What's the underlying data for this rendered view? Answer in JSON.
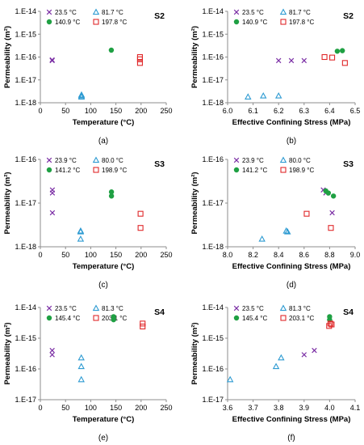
{
  "colors": {
    "purple": "#7B2FA5",
    "blue": "#2E9BD2",
    "green": "#1FA043",
    "red": "#E0282A",
    "axis": "#8C8C8C",
    "text": "#000000"
  },
  "chart_data": [
    {
      "id": "a",
      "panel_label": "(a)",
      "sample": "S2",
      "type": "scatter",
      "xlabel": "Temperature (°C)",
      "ylabel": "Permeability (m²)",
      "x_ticks": [
        "0",
        "50",
        "100",
        "150",
        "200",
        "250"
      ],
      "xlim": [
        0,
        250
      ],
      "y_scale": "log",
      "y_ticks": [
        "1.E-14",
        "1.E-15",
        "1.E-16",
        "1.E-17",
        "1.E-18"
      ],
      "ylim": [
        1e-18,
        1e-14
      ],
      "series": [
        {
          "name": "23.5 °C",
          "marker": "x",
          "x": [
            23.5,
            23.5
          ],
          "y": [
            7e-17,
            7.5e-17
          ]
        },
        {
          "name": "81.7 °C",
          "marker": "triangle",
          "x": [
            81.7,
            81.7,
            81.7
          ],
          "y": [
            1.8e-18,
            2e-18,
            2.2e-18
          ]
        },
        {
          "name": "140.9 °C",
          "marker": "circle",
          "x": [
            140.9
          ],
          "y": [
            2e-16
          ]
        },
        {
          "name": "197.8 °C",
          "marker": "square",
          "x": [
            197.8,
            197.8,
            197.8
          ],
          "y": [
            1e-16,
            8e-17,
            5.5e-17
          ]
        }
      ]
    },
    {
      "id": "b",
      "panel_label": "(b)",
      "sample": "S2",
      "type": "scatter",
      "xlabel": "Effective Confining Stress (MPa)",
      "ylabel": "Permeability (m²)",
      "x_ticks": [
        "6.0",
        "6.1",
        "6.2",
        "6.3",
        "6.4",
        "6.5"
      ],
      "xlim": [
        6.0,
        6.5
      ],
      "y_scale": "log",
      "y_ticks": [
        "1.E-14",
        "1.E-15",
        "1.E-16",
        "1.E-17",
        "1.E-18"
      ],
      "ylim": [
        1e-18,
        1e-14
      ],
      "series": [
        {
          "name": "23.5 °C",
          "marker": "x",
          "x": [
            6.2,
            6.25,
            6.3
          ],
          "y": [
            7e-17,
            7e-17,
            7e-17
          ]
        },
        {
          "name": "81.7 °C",
          "marker": "triangle",
          "x": [
            6.08,
            6.14,
            6.2
          ],
          "y": [
            1.8e-18,
            2e-18,
            2e-18
          ]
        },
        {
          "name": "140.9 °C",
          "marker": "circle",
          "x": [
            6.43,
            6.45
          ],
          "y": [
            1.8e-16,
            1.9e-16
          ]
        },
        {
          "name": "197.8 °C",
          "marker": "square",
          "x": [
            6.38,
            6.41,
            6.46
          ],
          "y": [
            1e-16,
            9.5e-17,
            5.5e-17
          ]
        }
      ]
    },
    {
      "id": "c",
      "panel_label": "(c)",
      "sample": "S3",
      "type": "scatter",
      "xlabel": "Temperature (°C)",
      "ylabel": "Permeability (m²)",
      "x_ticks": [
        "0",
        "50",
        "100",
        "150",
        "200",
        "250"
      ],
      "xlim": [
        0,
        250
      ],
      "y_scale": "log",
      "y_ticks": [
        "1.E-16",
        "1.E-17",
        "1.E-18"
      ],
      "ylim": [
        1e-18,
        1e-16
      ],
      "series": [
        {
          "name": "23.9 °C",
          "marker": "x",
          "x": [
            23.9,
            23.9,
            23.9
          ],
          "y": [
            2e-17,
            1.7e-17,
            6e-18
          ]
        },
        {
          "name": "80.0 °C",
          "marker": "triangle",
          "x": [
            80,
            80,
            80
          ],
          "y": [
            2.3e-18,
            2.2e-18,
            1.5e-18
          ]
        },
        {
          "name": "141.2 °C",
          "marker": "circle",
          "x": [
            141.2,
            141.2
          ],
          "y": [
            1.8e-17,
            1.45e-17
          ]
        },
        {
          "name": "198.9 °C",
          "marker": "square",
          "x": [
            198.9,
            198.9
          ],
          "y": [
            5.7e-18,
            2.7e-18
          ]
        }
      ]
    },
    {
      "id": "d",
      "panel_label": "(d)",
      "sample": "S3",
      "type": "scatter",
      "xlabel": "Effective Confining Stress (MPa)",
      "ylabel": "Permeability (m²)",
      "x_ticks": [
        "8.0",
        "8.2",
        "8.4",
        "8.6",
        "8.8",
        "9.0"
      ],
      "xlim": [
        8.0,
        9.0
      ],
      "y_scale": "log",
      "y_ticks": [
        "1.E-16",
        "1.E-17",
        "1.E-18"
      ],
      "ylim": [
        1e-18,
        1e-16
      ],
      "series": [
        {
          "name": "23.9 °C",
          "marker": "x",
          "x": [
            8.75,
            8.77,
            8.82
          ],
          "y": [
            2e-17,
            1.7e-17,
            6e-18
          ]
        },
        {
          "name": "80.0 °C",
          "marker": "triangle",
          "x": [
            8.27,
            8.46,
            8.47
          ],
          "y": [
            1.5e-18,
            2.3e-18,
            2.2e-18
          ]
        },
        {
          "name": "141.2 °C",
          "marker": "circle",
          "x": [
            8.77,
            8.79,
            8.83
          ],
          "y": [
            1.9e-17,
            1.7e-17,
            1.45e-17
          ]
        },
        {
          "name": "198.9 °C",
          "marker": "square",
          "x": [
            8.62,
            8.81
          ],
          "y": [
            5.7e-18,
            2.7e-18
          ]
        }
      ]
    },
    {
      "id": "e",
      "panel_label": "(e)",
      "sample": "S4",
      "type": "scatter",
      "xlabel": "Temperature (°C)",
      "ylabel": "Permeability (m²)",
      "x_ticks": [
        "0",
        "50",
        "100",
        "150",
        "200",
        "250"
      ],
      "xlim": [
        0,
        250
      ],
      "y_scale": "log",
      "y_ticks": [
        "1.E-14",
        "1.E-15",
        "1.E-16",
        "1.E-17"
      ],
      "ylim": [
        1e-17,
        1e-14
      ],
      "series": [
        {
          "name": "23.5 °C",
          "marker": "x",
          "x": [
            23.5,
            23.5
          ],
          "y": [
            4e-16,
            2.9e-16
          ]
        },
        {
          "name": "81.3 °C",
          "marker": "triangle",
          "x": [
            81.3,
            81.3,
            81.3
          ],
          "y": [
            2.3e-16,
            1.2e-16,
            4.5e-17
          ]
        },
        {
          "name": "145.4 °C",
          "marker": "circle",
          "x": [
            145.4,
            145.4
          ],
          "y": [
            5e-15,
            4e-15
          ]
        },
        {
          "name": "203.1 °C",
          "marker": "square",
          "x": [
            203.1,
            203.1
          ],
          "y": [
            3e-15,
            2.4e-15
          ]
        }
      ]
    },
    {
      "id": "f",
      "panel_label": "(f)",
      "sample": "S4",
      "type": "scatter",
      "xlabel": "Effective Confining Stress (MPa)",
      "ylabel": "Permeability (m²)",
      "x_ticks": [
        "3.6",
        "3.7",
        "3.8",
        "3.9",
        "4.0",
        "4.1"
      ],
      "xlim": [
        3.6,
        4.1
      ],
      "y_scale": "log",
      "y_ticks": [
        "1.E-14",
        "1.E-15",
        "1.E-16",
        "1.E-17"
      ],
      "ylim": [
        1e-17,
        1e-14
      ],
      "series": [
        {
          "name": "23.5 °C",
          "marker": "x",
          "x": [
            3.9,
            3.94
          ],
          "y": [
            2.9e-16,
            4e-16
          ]
        },
        {
          "name": "81.3 °C",
          "marker": "triangle",
          "x": [
            3.61,
            3.79,
            3.81
          ],
          "y": [
            4.5e-17,
            1.2e-16,
            2.3e-16
          ]
        },
        {
          "name": "145.4 °C",
          "marker": "circle",
          "x": [
            4.0,
            4.0
          ],
          "y": [
            5e-15,
            4e-15
          ]
        },
        {
          "name": "203.1 °C",
          "marker": "square",
          "x": [
            3.998,
            4.003,
            4.008
          ],
          "y": [
            2.5e-15,
            3e-15,
            2.8e-15
          ]
        }
      ]
    }
  ]
}
